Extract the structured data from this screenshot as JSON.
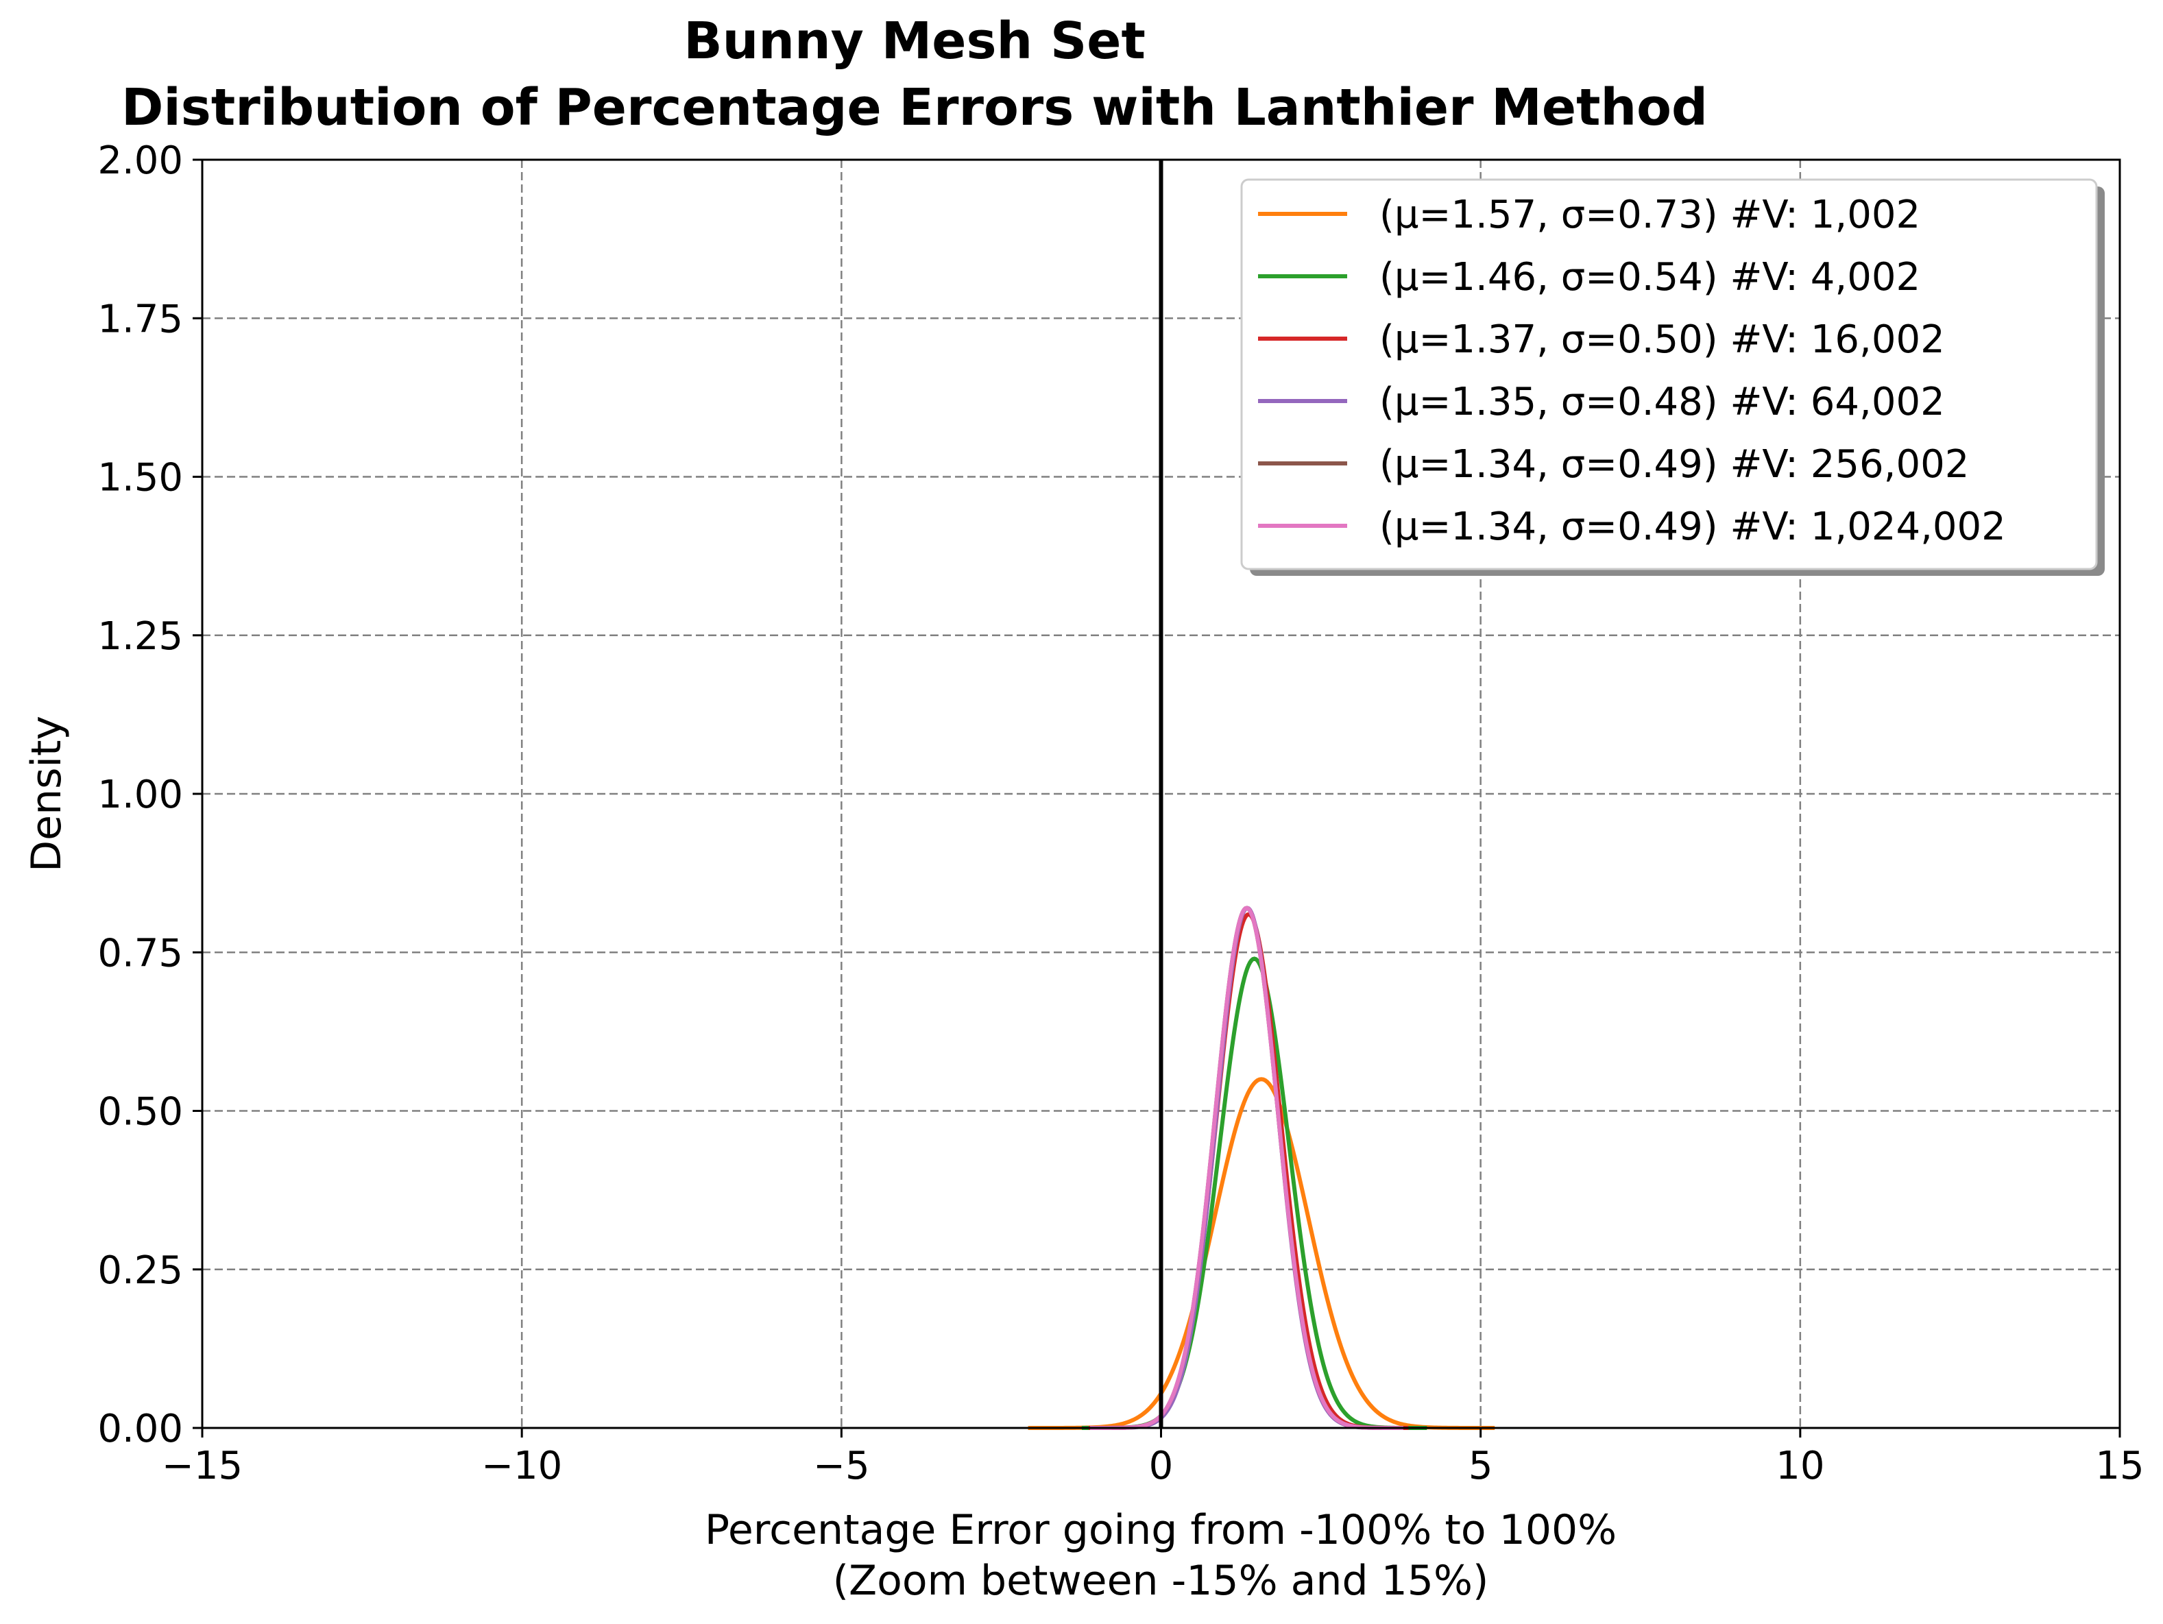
{
  "chart_data": {
    "type": "line",
    "title": "Bunny Mesh Set",
    "subtitle": "Distribution of Percentage Errors with Lanthier Method",
    "xlabel": "Percentage Error going from -100% to 100%",
    "xlabel2": "(Zoom between -15% and 15%)",
    "ylabel": "Density",
    "xlim": [
      -15,
      15
    ],
    "ylim": [
      0,
      2.0
    ],
    "xticks": [
      -15,
      -10,
      -5,
      0,
      5,
      10,
      15
    ],
    "xtick_labels": [
      "−15",
      "−10",
      "−5",
      "0",
      "5",
      "10",
      "15"
    ],
    "yticks": [
      0,
      0.25,
      0.5,
      0.75,
      1.0,
      1.25,
      1.5,
      1.75,
      2.0
    ],
    "ytick_labels": [
      "0.00",
      "0.25",
      "0.50",
      "0.75",
      "1.00",
      "1.25",
      "1.50",
      "1.75",
      "2.00"
    ],
    "grid": true,
    "legend_position": "top-right",
    "vertical_line_x": 0,
    "series": [
      {
        "name": "(μ=1.57, σ=0.73) #V: 1,002",
        "color": "#ff7f0e",
        "mu": 1.57,
        "sigma": 0.73,
        "peak": 0.55
      },
      {
        "name": "(μ=1.46, σ=0.54) #V: 4,002",
        "color": "#2ca02c",
        "mu": 1.46,
        "sigma": 0.54,
        "peak": 0.74
      },
      {
        "name": "(μ=1.37, σ=0.50) #V: 16,002",
        "color": "#d62728",
        "mu": 1.37,
        "sigma": 0.5,
        "peak": 0.81
      },
      {
        "name": "(μ=1.35, σ=0.48) #V: 64,002",
        "color": "#9467bd",
        "mu": 1.35,
        "sigma": 0.48,
        "peak": 0.82
      },
      {
        "name": "(μ=1.34, σ=0.49) #V: 256,002",
        "color": "#8c564b",
        "mu": 1.34,
        "sigma": 0.49,
        "peak": 0.82
      },
      {
        "name": "(μ=1.34, σ=0.49) #V: 1,024,002",
        "color": "#e377c2",
        "mu": 1.34,
        "sigma": 0.49,
        "peak": 0.82
      }
    ]
  }
}
